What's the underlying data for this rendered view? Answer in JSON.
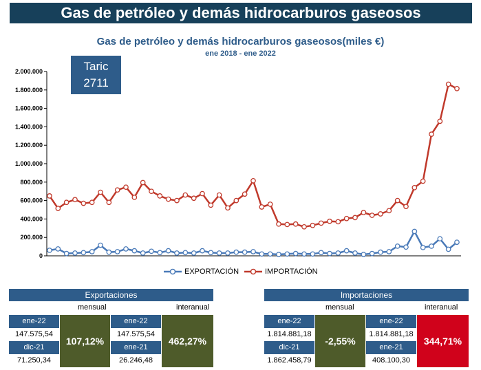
{
  "banner_title": "Gas de petróleo y demás hidrocarburos gaseosos",
  "taric": {
    "label": "Taric",
    "code": "2711"
  },
  "colors": {
    "banner": "#17405a",
    "accent": "#2e5c8a",
    "export": "#4a7ab8",
    "import": "#c0392b",
    "green": "#4e5b2a",
    "red": "#d0021b"
  },
  "chart_data": {
    "type": "line",
    "title": "Gas de petróleo y demás hidrocarburos gaseosos(miles €)",
    "subtitle": "ene 2018 - ene 2022",
    "ylim": [
      0,
      2000000
    ],
    "yticks": [
      0,
      200000,
      400000,
      600000,
      800000,
      1000000,
      1200000,
      1400000,
      1600000,
      1800000,
      2000000
    ],
    "ytick_labels": [
      "0",
      "200.000",
      "400.000",
      "600.000",
      "800.000",
      "1.000.000",
      "1.200.000",
      "1.400.000",
      "1.600.000",
      "1.800.000",
      "2.000.000"
    ],
    "series": [
      {
        "name": "EXPORTACIÓN",
        "values": [
          60000,
          75000,
          25000,
          30000,
          35000,
          45000,
          115000,
          40000,
          45000,
          75000,
          55000,
          30000,
          50000,
          35000,
          55000,
          30000,
          35000,
          30000,
          55000,
          35000,
          30000,
          30000,
          40000,
          40000,
          45000,
          20000,
          20000,
          15000,
          20000,
          25000,
          20000,
          20000,
          35000,
          25000,
          30000,
          55000,
          30000,
          15000,
          25000,
          40000,
          45000,
          105000,
          95000,
          265000,
          90000,
          105000,
          185000,
          71250,
          147576
        ]
      },
      {
        "name": "IMPORTACIÓN",
        "values": [
          650000,
          515000,
          580000,
          610000,
          570000,
          580000,
          690000,
          580000,
          715000,
          745000,
          635000,
          795000,
          700000,
          650000,
          615000,
          600000,
          660000,
          625000,
          675000,
          550000,
          660000,
          520000,
          600000,
          670000,
          815000,
          530000,
          560000,
          345000,
          340000,
          345000,
          315000,
          330000,
          355000,
          375000,
          370000,
          405000,
          415000,
          470000,
          440000,
          455000,
          490000,
          600000,
          535000,
          740000,
          810000,
          1320000,
          1460000,
          1862459,
          1814881
        ]
      }
    ]
  },
  "legend": {
    "export": "EXPORTACIÓN",
    "import": "IMPORTACIÓN"
  },
  "exports": {
    "title": "Exportaciones",
    "mensual_label": "mensual",
    "interanual_label": "interanual",
    "cur_label": "ene-22",
    "cur_value": "147.575,54",
    "prev_label": "dic-21",
    "prev_value": "71.250,34",
    "mensual_pct": "107,12%",
    "ia_cur_label": "ene-22",
    "ia_cur_value": "147.575,54",
    "ia_prev_label": "ene-21",
    "ia_prev_value": "26.246,48",
    "interanual_pct": "462,27%"
  },
  "imports": {
    "title": "Importaciones",
    "mensual_label": "mensual",
    "interanual_label": "interanual",
    "cur_label": "ene-22",
    "cur_value": "1.814.881,18",
    "prev_label": "dic-21",
    "prev_value": "1.862.458,79",
    "mensual_pct": "-2,55%",
    "ia_cur_label": "ene-22",
    "ia_cur_value": "1.814.881,18",
    "ia_prev_label": "ene-21",
    "ia_prev_value": "408.100,30",
    "interanual_pct": "344,71%"
  }
}
